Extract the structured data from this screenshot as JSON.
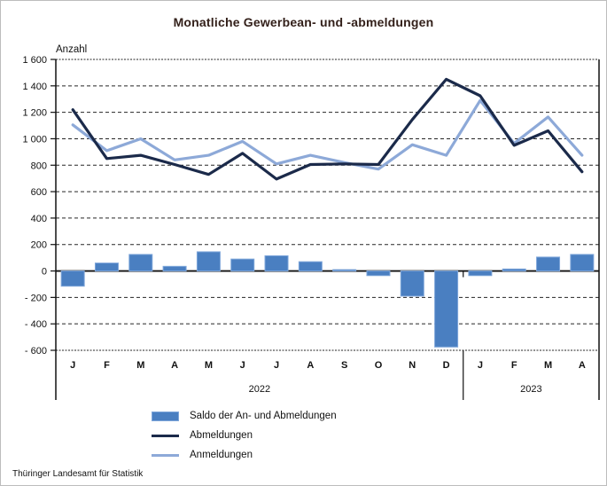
{
  "title": "Monatliche Gewerbean- und -abmeldungen",
  "footer": "Thüringer Landesamt für Statistik",
  "y_axis": {
    "label": "Anzahl",
    "ticks": [
      1600,
      1400,
      1200,
      1000,
      800,
      600,
      400,
      200,
      0,
      -200,
      -400,
      -600
    ],
    "tick_labels": [
      "1 600",
      "1 400",
      "1 200",
      "1 000",
      "800",
      "600",
      "400",
      "200",
      "0",
      "- 200",
      "- 400",
      "- 600"
    ]
  },
  "x_axis": {
    "months": [
      "J",
      "F",
      "M",
      "A",
      "M",
      "J",
      "J",
      "A",
      "S",
      "O",
      "N",
      "D",
      "J",
      "F",
      "M",
      "A"
    ],
    "year_groups": [
      {
        "label": "2022",
        "months": 12
      },
      {
        "label": "2023",
        "months": 4
      }
    ]
  },
  "chart_data": {
    "type": "composite",
    "title": "Monatliche Gewerbean- und -abmeldungen",
    "ylabel": "Anzahl",
    "ylim": [
      -600,
      1600
    ],
    "grid": true,
    "legend_position": "bottom-left",
    "categories": [
      "J 2022",
      "F 2022",
      "M 2022",
      "A 2022",
      "M 2022",
      "J 2022",
      "J 2022",
      "A 2022",
      "S 2022",
      "O 2022",
      "N 2022",
      "D 2022",
      "J 2023",
      "F 2023",
      "M 2023",
      "A 2023"
    ],
    "series": [
      {
        "name": "Saldo der An- und Abmeldungen",
        "type": "bar",
        "values": [
          -115,
          60,
          125,
          35,
          145,
          90,
          115,
          70,
          10,
          -35,
          -190,
          -575,
          -35,
          15,
          105,
          125
        ]
      },
      {
        "name": "Abmeldungen",
        "type": "line",
        "values": [
          1220,
          850,
          875,
          805,
          730,
          890,
          695,
          805,
          810,
          805,
          1145,
          1450,
          1325,
          950,
          1060,
          750
        ]
      },
      {
        "name": "Anmeldungen",
        "type": "line",
        "values": [
          1105,
          910,
          1000,
          840,
          875,
          980,
          810,
          875,
          820,
          770,
          955,
          875,
          1290,
          965,
          1165,
          875
        ]
      }
    ]
  },
  "legend": {
    "items": [
      {
        "label": "Saldo der An- und Abmeldungen",
        "swatch": "bar"
      },
      {
        "label": "Abmeldungen",
        "swatch": "line-dark"
      },
      {
        "label": "Anmeldungen",
        "swatch": "line-light"
      }
    ]
  },
  "colors": {
    "saldo_bar": "#4a7fc1",
    "saldo_bar_border": "#7ea6da",
    "abmeldungen_line": "#1b2a4a",
    "anmeldungen_line": "#8da9d8",
    "grid": "#262626",
    "axis": "#111111",
    "title_text": "#33201a"
  }
}
